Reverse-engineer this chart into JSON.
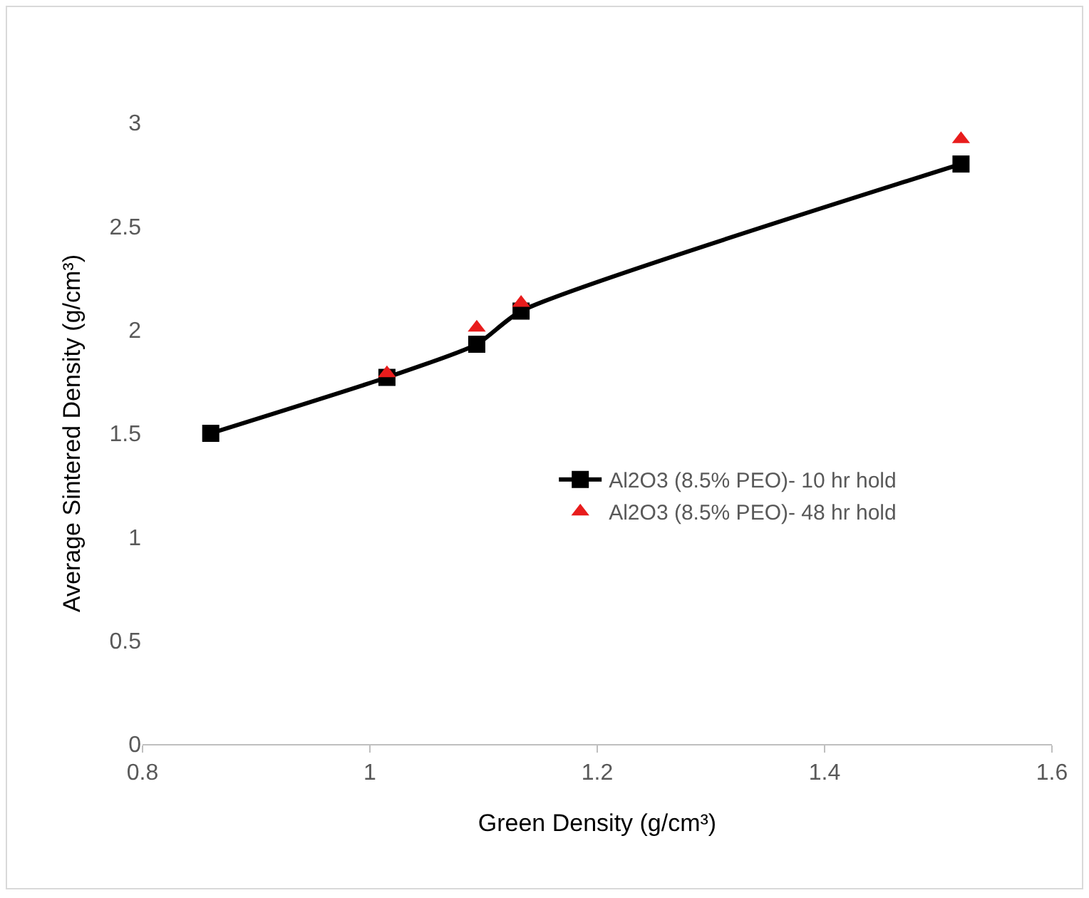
{
  "chart_data": {
    "type": "line",
    "xlabel": "Green Density (g/cm³)",
    "ylabel": "Average Sintered Density (g/cm³)",
    "xlim": [
      0.8,
      1.6
    ],
    "xticks": [
      0.8,
      1,
      1.2,
      1.4,
      1.6
    ],
    "ylim": [
      0,
      3
    ],
    "yticks": [
      0,
      0.5,
      1,
      1.5,
      2,
      2.5,
      3
    ],
    "grid": false,
    "legend": "right",
    "series": [
      {
        "name": "Al2O3 (8.5% PEO)- 10 hr hold",
        "marker": "square",
        "line_style": "solid",
        "color": "#000000",
        "x": [
          0.86,
          1.015,
          1.094,
          1.133,
          1.52
        ],
        "values": [
          1.5,
          1.77,
          1.93,
          2.09,
          2.8
        ]
      },
      {
        "name": "Al2O3 (8.5% PEO)- 48 hr hold",
        "type": "scatter",
        "marker": "triangle",
        "color": "#e81c1c",
        "x": [
          1.015,
          1.094,
          1.133,
          1.52
        ],
        "values": [
          1.79,
          2.01,
          2.13,
          2.92
        ]
      }
    ]
  }
}
